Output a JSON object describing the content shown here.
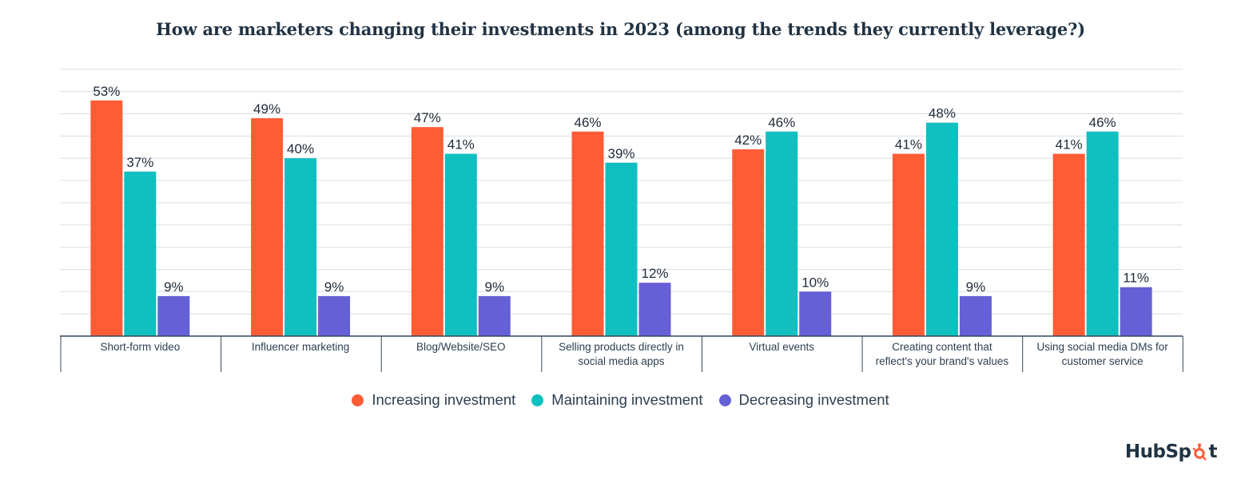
{
  "chart_data": {
    "type": "bar",
    "title": "How are marketers changing their investments in 2023 (among the trends they currently leverage?)",
    "categories": [
      [
        "Short-form video"
      ],
      [
        "Influencer marketing"
      ],
      [
        "Blog/Website/SEO"
      ],
      [
        "Selling products directly in",
        "social media apps"
      ],
      [
        "Virtual events"
      ],
      [
        "Creating content that",
        "reflect's your brand's values"
      ],
      [
        "Using social media DMs for",
        "customer service"
      ]
    ],
    "series": [
      {
        "name": "Increasing investment",
        "color": "#FF5C35",
        "values": [
          53,
          49,
          47,
          46,
          42,
          41,
          41
        ],
        "labels": [
          "53%",
          "49%",
          "47%",
          "46%",
          "42%",
          "41%",
          "41%"
        ]
      },
      {
        "name": "Maintaining investment",
        "color": "#10BFBF",
        "values": [
          37,
          40,
          41,
          39,
          46,
          48,
          46
        ],
        "labels": [
          "37%",
          "40%",
          "41%",
          "39%",
          "46%",
          "48%",
          "46%"
        ]
      },
      {
        "name": "Decreasing investment",
        "color": "#6560D6",
        "values": [
          9,
          9,
          9,
          12,
          10,
          9,
          11
        ],
        "labels": [
          "9%",
          "9%",
          "9%",
          "12%",
          "10%",
          "9%",
          "11%"
        ]
      }
    ],
    "ylim": [
      0,
      60
    ],
    "grid": true,
    "legend_position": "bottom-center"
  },
  "legend": {
    "items": [
      {
        "label": "Increasing investment",
        "color": "#FF5C35"
      },
      {
        "label": "Maintaining investment",
        "color": "#10BFBF"
      },
      {
        "label": "Decreasing investment",
        "color": "#6560D6"
      }
    ]
  },
  "brand": {
    "text_before": "HubSp",
    "text_after": "t",
    "icon": "sprocket-icon",
    "accent": "#FF5C35"
  }
}
